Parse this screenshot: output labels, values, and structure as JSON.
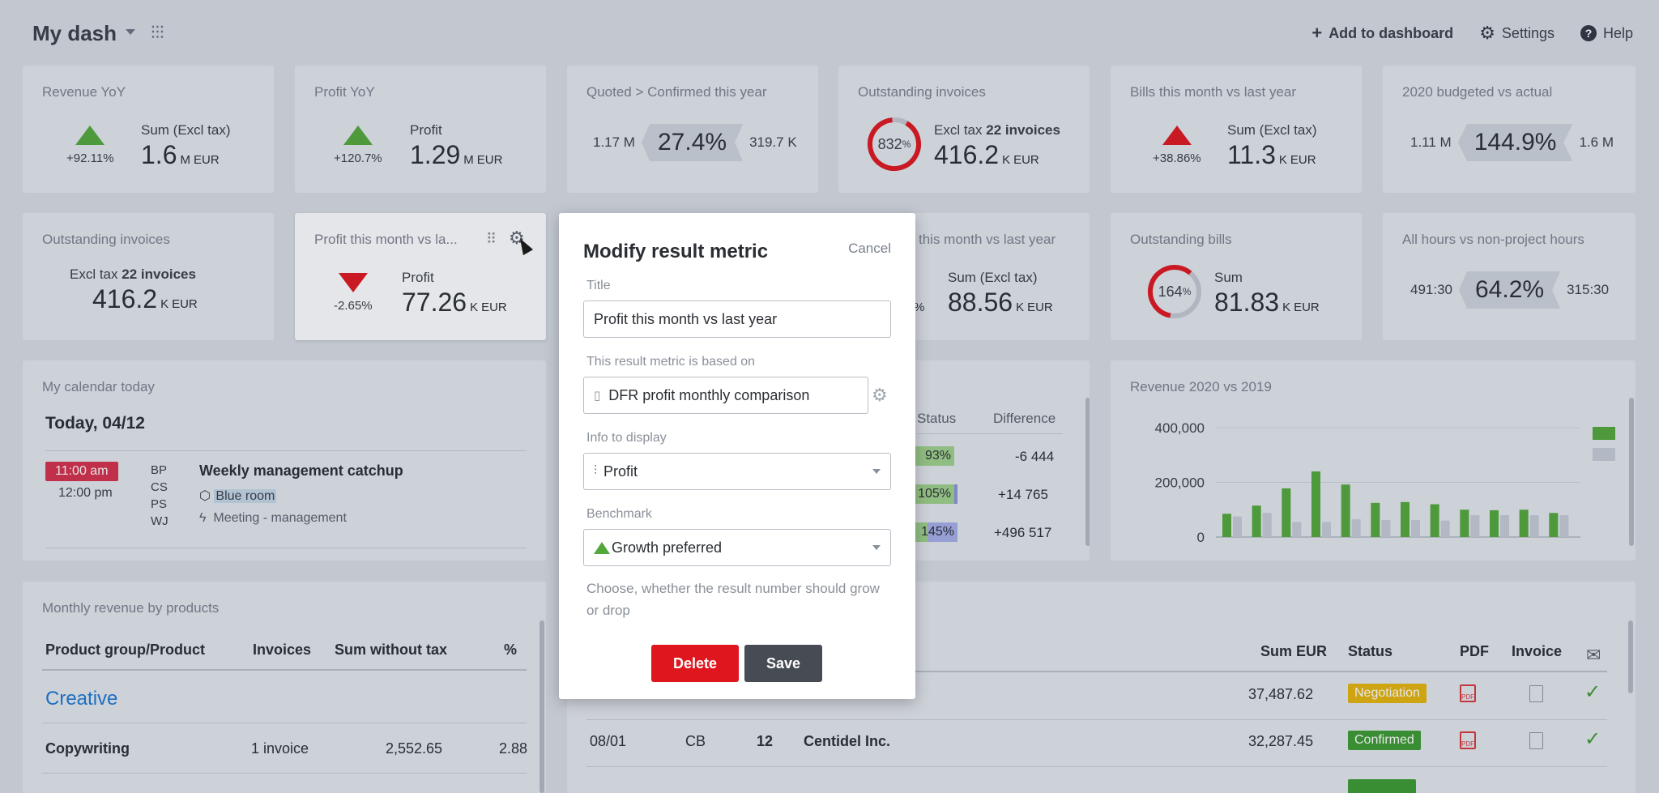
{
  "header": {
    "title": "My dash",
    "actions": {
      "add": "Add to dashboard",
      "settings": "Settings",
      "help": "Help"
    }
  },
  "cards": {
    "revenue_yoy": {
      "title": "Revenue YoY",
      "pct": "+92.11",
      "pct_unit": "%",
      "label": "Sum (Excl tax)",
      "value": "1.6",
      "scale": "M",
      "currency": "EUR"
    },
    "profit_yoy": {
      "title": "Profit YoY",
      "pct": "+120.7",
      "pct_unit": "%",
      "label": "Profit",
      "value": "1.29",
      "scale": "M",
      "currency": "EUR"
    },
    "quoted": {
      "title": "Quoted > Confirmed this year",
      "left": "1.17 M",
      "ratio": "27.4%",
      "right": "319.7 K"
    },
    "outstanding_inv": {
      "title": "Outstanding invoices",
      "ring_value": 832,
      "ring_pct": "%",
      "label_prefix": "Excl tax",
      "count": "22",
      "count_label": "invoices",
      "value": "416.2",
      "scale": "K",
      "currency": "EUR"
    },
    "bills_month": {
      "title": "Bills this month vs last year",
      "pct": "+38.86",
      "pct_unit": "%",
      "label": "Sum (Excl tax)",
      "value": "11.3",
      "scale": "K",
      "currency": "EUR"
    },
    "budget": {
      "title": "2020 budgeted vs actual",
      "left": "1.11 M",
      "ratio": "144.9%",
      "right": "1.6 M"
    },
    "outstanding_inv2": {
      "title": "Outstanding invoices",
      "label_prefix": "Excl tax",
      "count": "22",
      "count_label": "invoices",
      "value": "416.2",
      "scale": "K",
      "currency": "EUR"
    },
    "profit_month": {
      "title": "Profit this month vs la...",
      "pct": "-2.65",
      "pct_unit": "%",
      "label": "Profit",
      "value": "77.26",
      "scale": "K",
      "currency": "EUR"
    },
    "partial_month": {
      "title": "this month vs last year",
      "pct_tail": "%",
      "label": "Sum (Excl tax)",
      "value": "88.56",
      "scale": "K",
      "currency": "EUR"
    },
    "outstanding_bills": {
      "title": "Outstanding bills",
      "ring_value": 164,
      "ring_pct": "%",
      "label": "Sum",
      "value": "81.83",
      "scale": "K",
      "currency": "EUR"
    },
    "hours": {
      "title": "All hours vs non-project hours",
      "left": "491:30",
      "ratio": "64.2%",
      "right": "315:30"
    }
  },
  "calendar": {
    "title": "My calendar today",
    "date": "Today, 04/12",
    "start": "11:00 am",
    "end": "12:00 pm",
    "people": [
      "BP",
      "CS",
      "PS",
      "WJ"
    ],
    "event": "Weekly management catchup",
    "room": "Blue room",
    "type": "Meeting - management"
  },
  "mid_table": {
    "headers": {
      "status": "Status",
      "difference": "Difference"
    },
    "rows": [
      {
        "status": "93%",
        "status_fill": 0.93,
        "diff": "-6 444",
        "diff_color": "#d9202a"
      },
      {
        "status": "105%",
        "status_fill": 1.0,
        "diff": "+14 765",
        "diff_color": "#3c9a2f"
      },
      {
        "status": "145%",
        "status_fill": 1.0,
        "diff": "+496 517",
        "diff_color": "#3c9a2f"
      }
    ]
  },
  "revenue_chart": {
    "title": "Revenue 2020 vs 2019"
  },
  "chart_data": {
    "type": "bar",
    "title": "Revenue 2020 vs 2019",
    "ylim": [
      0,
      400000
    ],
    "y_ticks": [
      "400,000",
      "200,000",
      "0"
    ],
    "y_tick_values": [
      400000,
      200000,
      0
    ],
    "series": [
      {
        "color": "#53a83a",
        "values": [
          85000,
          115000,
          178000,
          240000,
          192000,
          125000,
          128000,
          120000,
          100000,
          98000,
          100000,
          88000
        ]
      },
      {
        "color": "#c7cbd6",
        "values": [
          75000,
          88000,
          55000,
          55000,
          65000,
          62000,
          62000,
          60000,
          80000,
          80000,
          80000,
          80000
        ]
      }
    ]
  },
  "products": {
    "title": "Monthly revenue by products",
    "headers": {
      "product": "Product group/Product",
      "invoices": "Invoices",
      "sum": "Sum without tax",
      "pct": "%"
    },
    "group": "Creative",
    "row": {
      "product": "Copywriting",
      "invoices": "1 invoice",
      "sum": "2,552.65",
      "pct": "2.88"
    }
  },
  "invoices": {
    "headers": {
      "sum": "Sum EUR",
      "status": "Status",
      "pdf": "PDF",
      "invoice": "Invoice"
    },
    "rows": [
      {
        "date": "",
        "user": "",
        "num": "",
        "customer": "",
        "sum": "37,487.62",
        "status": "Negotiation",
        "status_color": "#e5b40c"
      },
      {
        "date": "08/01",
        "user": "CB",
        "num": "12",
        "customer": "Centidel Inc.",
        "sum": "32,287.45",
        "status": "Confirmed",
        "status_color": "#3c9a2f"
      }
    ]
  },
  "modal": {
    "title": "Modify result metric",
    "cancel": "Cancel",
    "title_label": "Title",
    "title_value": "Profit this month vs last year",
    "based_label": "This result metric is based on",
    "based_value": "DFR profit monthly comparison",
    "info_label": "Info to display",
    "info_value": "Profit",
    "bench_label": "Benchmark",
    "bench_value": "Growth preferred",
    "help": "Choose, whether the result number should grow or drop",
    "delete": "Delete",
    "save": "Save"
  }
}
